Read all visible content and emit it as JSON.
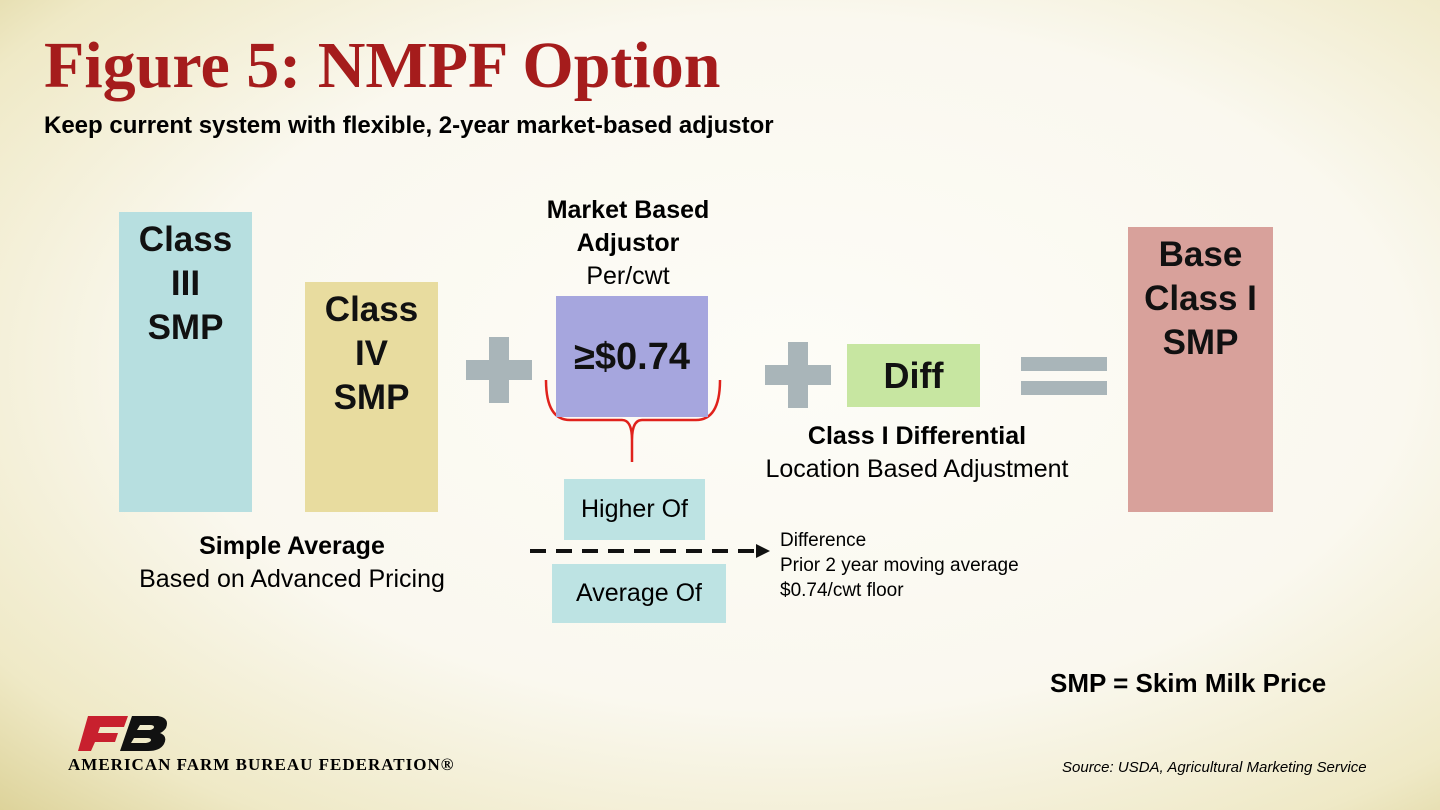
{
  "header": {
    "title": "Figure 5: NMPF Option",
    "subtitle": "Keep current system with flexible, 2-year market-based adjustor"
  },
  "class3": {
    "lines": [
      "Class",
      "III",
      "SMP"
    ]
  },
  "class4": {
    "lines": [
      "Class",
      "IV",
      "SMP"
    ]
  },
  "average_caption": {
    "title": "Simple Average",
    "sub": "Based on Advanced Pricing"
  },
  "adjustor": {
    "heading": [
      "Market Based",
      "Adjustor"
    ],
    "unit": "Per/cwt",
    "value": "≥$0.74",
    "higher_of": "Higher Of",
    "average_of": "Average Of",
    "note": [
      "Difference",
      "Prior 2 year moving average",
      "$0.74/cwt floor"
    ]
  },
  "diff": {
    "label": "Diff",
    "caption": "Class I Differential",
    "sub": "Location Based Adjustment"
  },
  "result": {
    "lines": [
      "Base",
      "Class I",
      "SMP"
    ]
  },
  "legend": "SMP = Skim Milk Price",
  "footer": {
    "logo_text": "AMERICAN FARM BUREAU FEDERATION®",
    "source": "Source: USDA, Agricultural Marketing Service"
  }
}
